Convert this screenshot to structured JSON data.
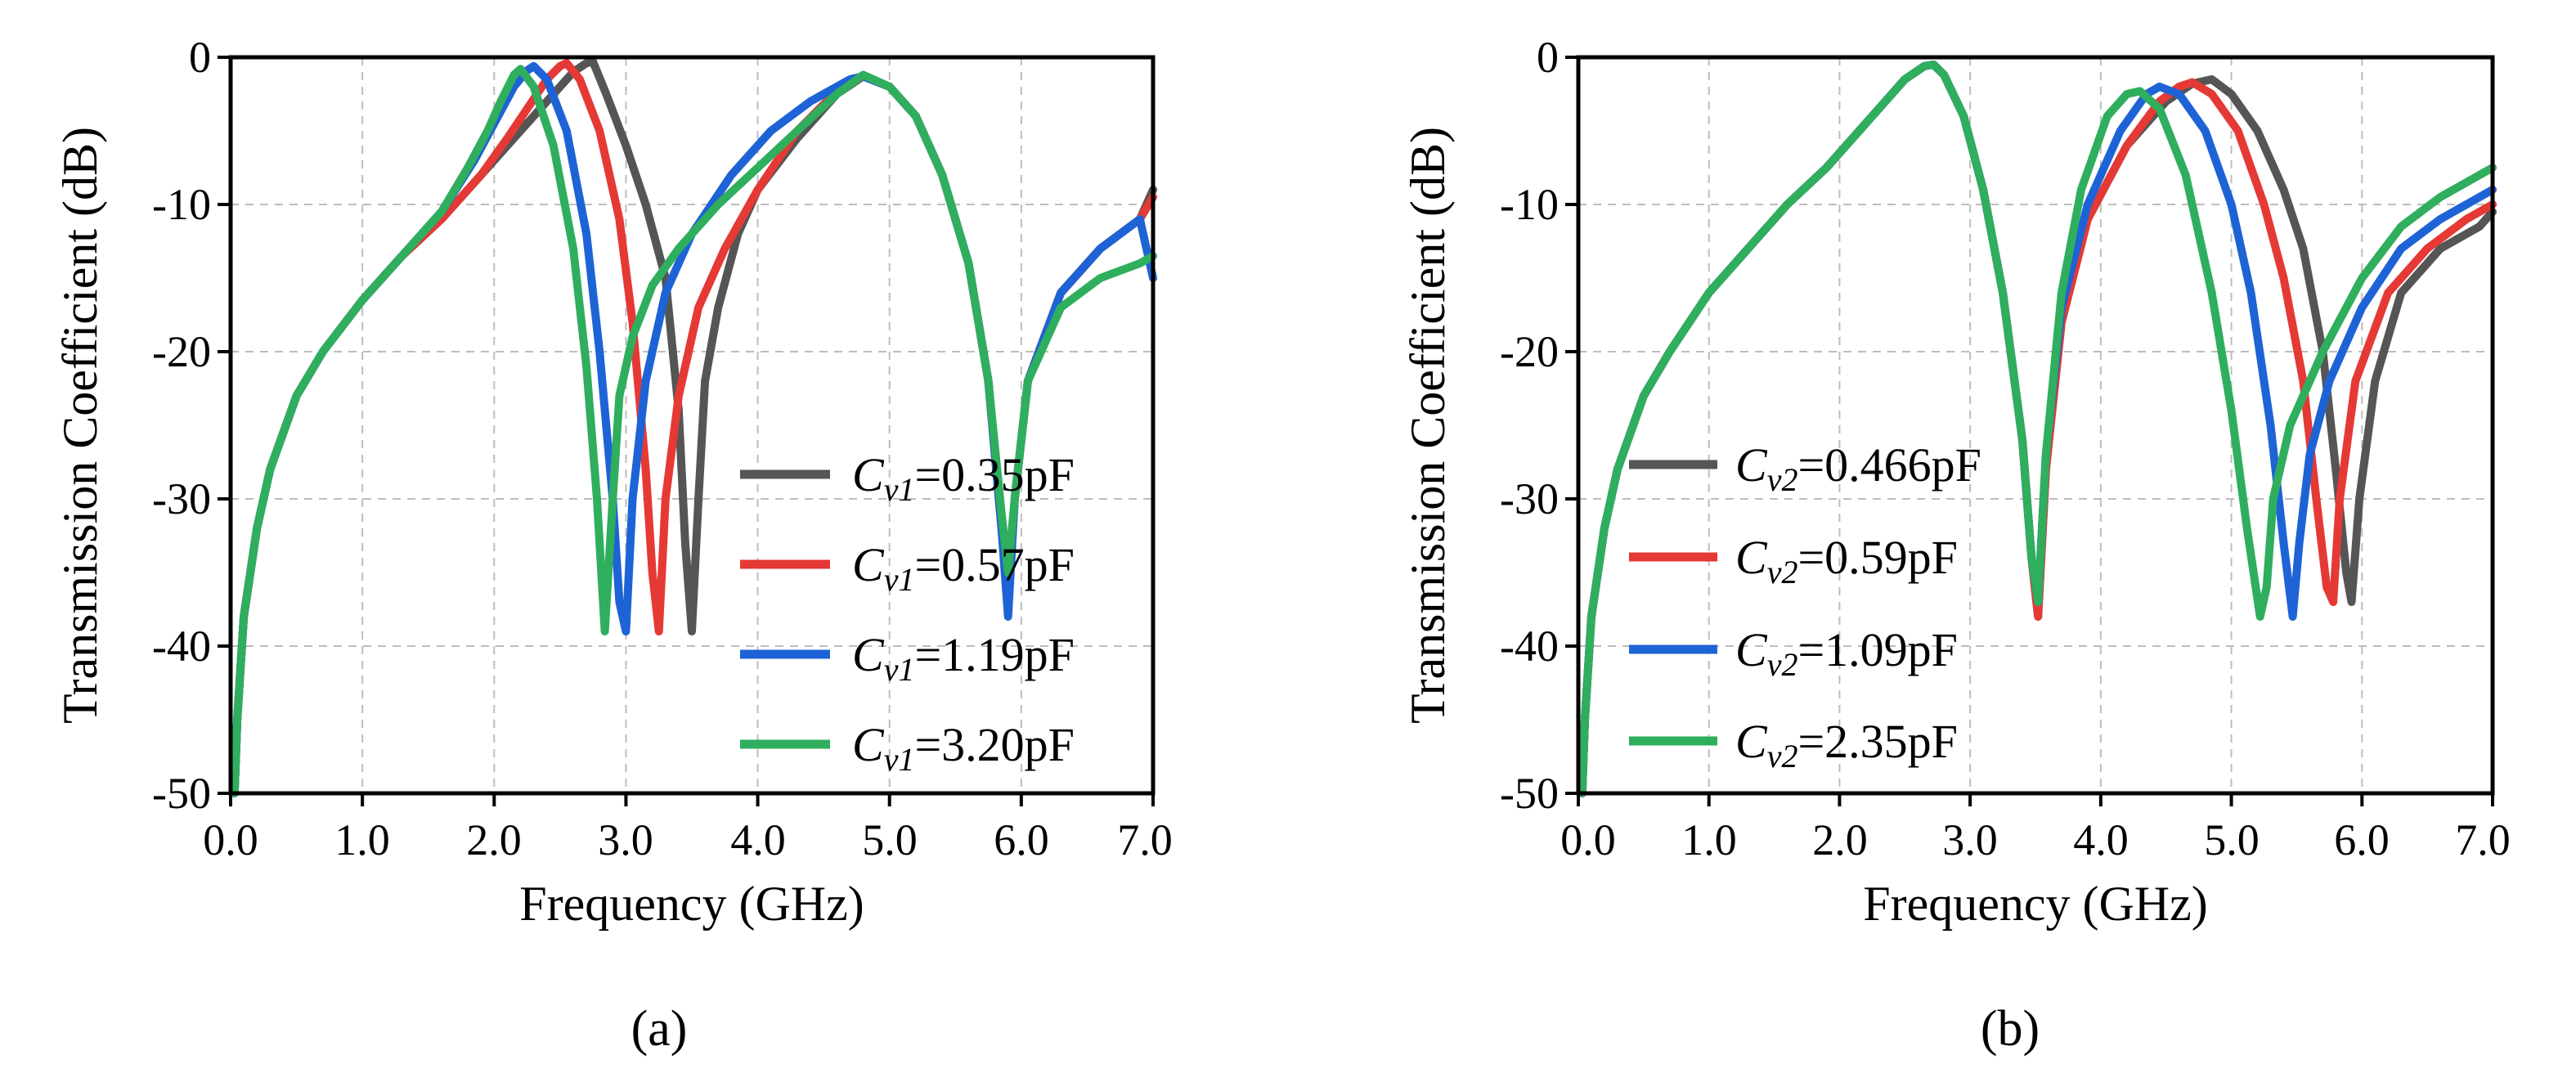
{
  "chart_data": [
    {
      "id": "a",
      "type": "line",
      "caption": "(a)",
      "xlabel": "Frequency (GHz)",
      "ylabel": "Transmission Coefficient (dB)",
      "xlim": [
        0,
        7
      ],
      "ylim": [
        -50,
        0
      ],
      "xticks": [
        "0.0",
        "1.0",
        "2.0",
        "3.0",
        "4.0",
        "5.0",
        "6.0",
        "7.0"
      ],
      "yticks": [
        "0",
        "-10",
        "-20",
        "-30",
        "-40",
        "-50"
      ],
      "legend_position": "bottom-right",
      "grid": true,
      "series": [
        {
          "name": "Cv1=0.35pF",
          "label_sym": "C",
          "label_sub": "v1",
          "label_val": "=0.35pF",
          "color": "#555555",
          "x": [
            0.03,
            0.05,
            0.1,
            0.2,
            0.3,
            0.5,
            0.7,
            1.0,
            1.3,
            1.6,
            1.9,
            2.1,
            2.3,
            2.5,
            2.6,
            2.7,
            2.75,
            2.85,
            3.0,
            3.15,
            3.3,
            3.4,
            3.45,
            3.5,
            3.55,
            3.6,
            3.7,
            3.85,
            4.0,
            4.3,
            4.6,
            4.8,
            5.0,
            5.2,
            5.4,
            5.6,
            5.75,
            5.85,
            5.9,
            5.95,
            6.05,
            6.3,
            6.6,
            6.9,
            7.0
          ],
          "y": [
            -50,
            -45,
            -38,
            -32,
            -28,
            -23,
            -20,
            -16.5,
            -13.5,
            -11,
            -8,
            -6,
            -4,
            -2,
            -1,
            -0.4,
            -0.3,
            -2.5,
            -6,
            -10,
            -15,
            -24,
            -33,
            -39,
            -30,
            -22,
            -17,
            -12,
            -9,
            -5.5,
            -2.5,
            -1.3,
            -2,
            -4,
            -8,
            -14,
            -22,
            -32,
            -37,
            -30,
            -22,
            -16,
            -13,
            -11,
            -9
          ]
        },
        {
          "name": "Cv1=0.57pF",
          "label_sym": "C",
          "label_sub": "v1",
          "label_val": "=0.57pF",
          "color": "#e53935",
          "x": [
            0.03,
            0.05,
            0.1,
            0.2,
            0.3,
            0.5,
            0.7,
            1.0,
            1.3,
            1.6,
            1.9,
            2.1,
            2.25,
            2.4,
            2.5,
            2.55,
            2.65,
            2.8,
            2.95,
            3.05,
            3.15,
            3.2,
            3.25,
            3.3,
            3.4,
            3.55,
            3.75,
            4.0,
            4.3,
            4.6,
            4.8,
            5.0,
            5.2,
            5.4,
            5.6,
            5.75,
            5.85,
            5.9,
            5.95,
            6.05,
            6.3,
            6.6,
            6.9,
            7.0
          ],
          "y": [
            -50,
            -45,
            -38,
            -32,
            -28,
            -23,
            -20,
            -16.5,
            -13.5,
            -11,
            -8,
            -5.5,
            -3.5,
            -1.5,
            -0.6,
            -0.4,
            -1.5,
            -5,
            -11,
            -18,
            -28,
            -35,
            -39,
            -30,
            -23,
            -17,
            -13,
            -9,
            -5,
            -2.3,
            -1.3,
            -2,
            -4,
            -8,
            -14,
            -22,
            -32,
            -37,
            -30,
            -22,
            -16,
            -13,
            -11,
            -9.5
          ]
        },
        {
          "name": "Cv1=1.19pF",
          "label_sym": "C",
          "label_sub": "v1",
          "label_val": "=1.19pF",
          "color": "#1e63d6",
          "x": [
            0.03,
            0.05,
            0.1,
            0.2,
            0.3,
            0.5,
            0.7,
            1.0,
            1.3,
            1.6,
            1.85,
            2.0,
            2.15,
            2.25,
            2.3,
            2.4,
            2.55,
            2.7,
            2.8,
            2.9,
            2.95,
            3.0,
            3.05,
            3.15,
            3.3,
            3.5,
            3.8,
            4.1,
            4.4,
            4.7,
            4.8,
            5.0,
            5.2,
            5.4,
            5.6,
            5.75,
            5.85,
            5.9,
            5.95,
            6.05,
            6.3,
            6.6,
            6.9,
            7.0
          ],
          "y": [
            -50,
            -45,
            -38,
            -32,
            -28,
            -23,
            -20,
            -16.5,
            -13.5,
            -10.5,
            -7,
            -4.5,
            -2,
            -0.9,
            -0.6,
            -1.5,
            -5,
            -12,
            -20,
            -30,
            -37,
            -39,
            -30,
            -22,
            -16,
            -12,
            -8,
            -5,
            -3,
            -1.5,
            -1.3,
            -2,
            -4,
            -8,
            -14,
            -22,
            -32,
            -38,
            -30,
            -22,
            -16,
            -13,
            -11,
            -15
          ]
        },
        {
          "name": "Cv1=3.20pF",
          "label_sym": "C",
          "label_sub": "v1",
          "label_val": "=3.20pF",
          "color": "#2fae5e",
          "x": [
            0.03,
            0.05,
            0.1,
            0.2,
            0.3,
            0.5,
            0.7,
            1.0,
            1.3,
            1.6,
            1.8,
            1.95,
            2.05,
            2.15,
            2.2,
            2.3,
            2.45,
            2.6,
            2.7,
            2.78,
            2.84,
            2.9,
            2.95,
            3.05,
            3.2,
            3.4,
            3.7,
            4.0,
            4.3,
            4.6,
            4.8,
            5.0,
            5.2,
            5.4,
            5.6,
            5.75,
            5.85,
            5.9,
            5.95,
            6.05,
            6.3,
            6.6,
            6.9,
            7.0
          ],
          "y": [
            -50,
            -45,
            -38,
            -32,
            -28,
            -23,
            -20,
            -16.5,
            -13.5,
            -10.5,
            -7.5,
            -5,
            -3,
            -1.2,
            -0.8,
            -2,
            -6,
            -13,
            -21,
            -30,
            -39,
            -30,
            -23,
            -19,
            -15.5,
            -13,
            -10,
            -7.5,
            -5,
            -2.5,
            -1.2,
            -2,
            -4,
            -8,
            -14,
            -22,
            -31,
            -35,
            -30,
            -22,
            -17,
            -15,
            -14,
            -13.5
          ]
        }
      ],
      "ticks_x": [
        0,
        1,
        2,
        3,
        4,
        5,
        6,
        7
      ],
      "ticks_y": [
        0,
        -10,
        -20,
        -30,
        -40,
        -50
      ]
    },
    {
      "id": "b",
      "type": "line",
      "caption": "(b)",
      "xlabel": "Frequency (GHz)",
      "ylabel": "Transmission Coefficient (dB)",
      "xlim": [
        0,
        7
      ],
      "ylim": [
        -50,
        0
      ],
      "xticks": [
        "0.0",
        "1.0",
        "2.0",
        "3.0",
        "4.0",
        "5.0",
        "6.0",
        "7.0"
      ],
      "yticks": [
        "0",
        "-10",
        "-20",
        "-30",
        "-40",
        "-50"
      ],
      "legend_position": "bottom-left",
      "grid": true,
      "series": [
        {
          "name": "Cv2=0.466pF",
          "label_sym": "C",
          "label_sub": "v2",
          "label_val": "=0.466pF",
          "color": "#555555",
          "x": [
            0.03,
            0.05,
            0.1,
            0.2,
            0.3,
            0.5,
            0.7,
            1.0,
            1.3,
            1.6,
            1.9,
            2.2,
            2.5,
            2.65,
            2.72,
            2.8,
            2.95,
            3.1,
            3.25,
            3.4,
            3.47,
            3.52,
            3.58,
            3.7,
            3.9,
            4.2,
            4.5,
            4.7,
            4.85,
            5.0,
            5.2,
            5.4,
            5.55,
            5.7,
            5.8,
            5.88,
            5.92,
            5.98,
            6.1,
            6.3,
            6.6,
            6.9,
            7.0
          ],
          "y": [
            -50,
            -45,
            -38,
            -32,
            -28,
            -23,
            -20,
            -16,
            -13,
            -10,
            -7.5,
            -4.5,
            -1.5,
            -0.6,
            -0.5,
            -1.2,
            -4,
            -9,
            -16,
            -26,
            -34,
            -38,
            -28,
            -18,
            -11,
            -6,
            -3,
            -1.8,
            -1.5,
            -2.5,
            -5,
            -9,
            -13,
            -20,
            -28,
            -35,
            -37,
            -30,
            -22,
            -16,
            -13,
            -11.5,
            -10.5
          ]
        },
        {
          "name": "Cv2=0.59pF",
          "label_sym": "C",
          "label_sub": "v2",
          "label_val": "=0.59pF",
          "color": "#e53935",
          "x": [
            0.03,
            0.05,
            0.1,
            0.2,
            0.3,
            0.5,
            0.7,
            1.0,
            1.3,
            1.6,
            1.9,
            2.2,
            2.5,
            2.65,
            2.72,
            2.8,
            2.95,
            3.1,
            3.25,
            3.4,
            3.47,
            3.52,
            3.58,
            3.7,
            3.9,
            4.2,
            4.45,
            4.6,
            4.7,
            4.85,
            5.05,
            5.25,
            5.4,
            5.55,
            5.65,
            5.73,
            5.78,
            5.83,
            5.95,
            6.2,
            6.5,
            6.8,
            7.0
          ],
          "y": [
            -50,
            -45,
            -38,
            -32,
            -28,
            -23,
            -20,
            -16,
            -13,
            -10,
            -7.5,
            -4.5,
            -1.5,
            -0.6,
            -0.5,
            -1.2,
            -4,
            -9,
            -16,
            -26,
            -34,
            -38,
            -28,
            -18,
            -11,
            -6,
            -3,
            -2,
            -1.7,
            -2.5,
            -5,
            -10,
            -15,
            -22,
            -30,
            -36,
            -37,
            -30,
            -22,
            -16,
            -13,
            -11,
            -10
          ]
        },
        {
          "name": "Cv2=1.09pF",
          "label_sym": "C",
          "label_sub": "v2",
          "label_val": "=1.09pF",
          "color": "#1e63d6",
          "x": [
            0.03,
            0.05,
            0.1,
            0.2,
            0.3,
            0.5,
            0.7,
            1.0,
            1.3,
            1.6,
            1.9,
            2.2,
            2.5,
            2.65,
            2.72,
            2.8,
            2.95,
            3.1,
            3.25,
            3.4,
            3.47,
            3.52,
            3.58,
            3.7,
            3.9,
            4.15,
            4.35,
            4.45,
            4.6,
            4.8,
            5.0,
            5.15,
            5.3,
            5.4,
            5.47,
            5.52,
            5.6,
            5.75,
            6.0,
            6.3,
            6.6,
            6.9,
            7.0
          ],
          "y": [
            -50,
            -45,
            -38,
            -32,
            -28,
            -23,
            -20,
            -16,
            -13,
            -10,
            -7.5,
            -4.5,
            -1.5,
            -0.6,
            -0.5,
            -1.2,
            -4,
            -9,
            -16,
            -26,
            -34,
            -37,
            -27,
            -17,
            -10,
            -5,
            -2.5,
            -2,
            -2.5,
            -5,
            -10,
            -16,
            -25,
            -33,
            -38,
            -33,
            -27,
            -22,
            -17,
            -13,
            -11,
            -9.5,
            -9
          ]
        },
        {
          "name": "Cv2=2.35pF",
          "label_sym": "C",
          "label_sub": "v2",
          "label_val": "=2.35pF",
          "color": "#2fae5e",
          "x": [
            0.03,
            0.05,
            0.1,
            0.2,
            0.3,
            0.5,
            0.7,
            1.0,
            1.3,
            1.6,
            1.9,
            2.2,
            2.5,
            2.65,
            2.72,
            2.8,
            2.95,
            3.1,
            3.25,
            3.4,
            3.47,
            3.52,
            3.58,
            3.7,
            3.85,
            4.05,
            4.2,
            4.3,
            4.45,
            4.65,
            4.85,
            5.0,
            5.12,
            5.22,
            5.27,
            5.32,
            5.45,
            5.7,
            6.0,
            6.3,
            6.6,
            6.9,
            7.0
          ],
          "y": [
            -50,
            -45,
            -38,
            -32,
            -28,
            -23,
            -20,
            -16,
            -13,
            -10,
            -7.5,
            -4.5,
            -1.5,
            -0.6,
            -0.5,
            -1.2,
            -4,
            -9,
            -16,
            -26,
            -34,
            -37,
            -27,
            -16,
            -9,
            -4,
            -2.5,
            -2.3,
            -3.5,
            -8,
            -16,
            -24,
            -32,
            -38,
            -36,
            -30,
            -25,
            -20,
            -15,
            -11.5,
            -9.5,
            -8,
            -7.5
          ]
        }
      ],
      "ticks_x": [
        0,
        1,
        2,
        3,
        4,
        5,
        6,
        7
      ],
      "ticks_y": [
        0,
        -10,
        -20,
        -30,
        -40,
        -50
      ]
    }
  ]
}
